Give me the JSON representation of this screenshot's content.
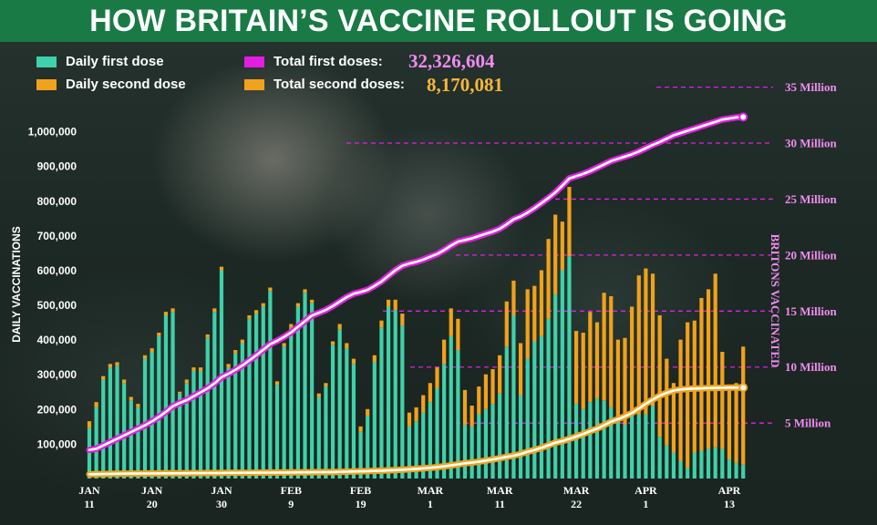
{
  "title": "HOW BRITAIN’S VACCINE ROLLOUT IS GOING",
  "colors": {
    "title_bg": "#1a7a46",
    "first_dose_bar": "#3fd1a9",
    "second_dose_bar": "#f0a21a",
    "total_first_line": "#e21ee2",
    "total_second_line": "#f0a21a",
    "ref_line": "#e21ee2",
    "ref_label": "#f08cf0"
  },
  "legend": {
    "daily_first": "Daily first dose",
    "daily_second": "Daily second dose",
    "total_first_label": "Total first doses:",
    "total_first_value": "32,326,604",
    "total_second_label": "Total second doses:",
    "total_second_value": "8,170,081"
  },
  "chart_data": {
    "type": "bar+line",
    "title": "HOW BRITAIN’S VACCINE ROLLOUT IS GOING",
    "ylabel": "DAILY VACCINATIONS",
    "y2label": "BRITONS VACCINATED",
    "ylim": [
      0,
      1100000
    ],
    "y2lim": [
      0,
      36500000
    ],
    "yticks": [
      "100,000",
      "200,000",
      "300,000",
      "400,000",
      "500,000",
      "600,000",
      "700,000",
      "800,000",
      "900,000",
      "1,000,000"
    ],
    "ytick_values": [
      100000,
      200000,
      300000,
      400000,
      500000,
      600000,
      700000,
      800000,
      900000,
      1000000
    ],
    "reference_lines": [
      {
        "value": 5000000,
        "label": "5 Million"
      },
      {
        "value": 10000000,
        "label": "10 Million"
      },
      {
        "value": 15000000,
        "label": "15 Million"
      },
      {
        "value": 20000000,
        "label": "20 Million"
      },
      {
        "value": 25000000,
        "label": "25 Million"
      },
      {
        "value": 30000000,
        "label": "30 Million"
      },
      {
        "value": 35000000,
        "label": "35 Million"
      }
    ],
    "xticks": [
      {
        "line1": "JAN",
        "line2": "11",
        "day": 0
      },
      {
        "line1": "JAN",
        "line2": "20",
        "day": 9
      },
      {
        "line1": "JAN",
        "line2": "30",
        "day": 19
      },
      {
        "line1": "FEB",
        "line2": "9",
        "day": 29
      },
      {
        "line1": "FEB",
        "line2": "19",
        "day": 39
      },
      {
        "line1": "MAR",
        "line2": "1",
        "day": 49
      },
      {
        "line1": "MAR",
        "line2": "11",
        "day": 59
      },
      {
        "line1": "MAR",
        "line2": "22",
        "day": 70
      },
      {
        "line1": "APR",
        "line2": "1",
        "day": 80
      },
      {
        "line1": "APR",
        "line2": "13",
        "day": 92
      }
    ],
    "legend_position": "top",
    "series": [
      {
        "name": "Daily first dose",
        "type": "bar",
        "values": [
          145000,
          205000,
          285000,
          320000,
          325000,
          275000,
          225000,
          205000,
          345000,
          365000,
          410000,
          470000,
          480000,
          245000,
          275000,
          310000,
          310000,
          405000,
          480000,
          600000,
          320000,
          360000,
          390000,
          460000,
          475000,
          495000,
          540000,
          270000,
          380000,
          435000,
          495000,
          535000,
          505000,
          235000,
          265000,
          385000,
          430000,
          375000,
          330000,
          135000,
          180000,
          335000,
          435000,
          495000,
          485000,
          440000,
          150000,
          165000,
          190000,
          220000,
          260000,
          330000,
          410000,
          370000,
          155000,
          150000,
          185000,
          200000,
          215000,
          245000,
          380000,
          470000,
          240000,
          345000,
          395000,
          410000,
          460000,
          530000,
          600000,
          640000,
          215000,
          200000,
          220000,
          230000,
          225000,
          205000,
          180000,
          155000,
          195000,
          185000,
          185000,
          210000,
          120000,
          95000,
          75000,
          50000,
          30000,
          75000,
          80000,
          85000,
          90000,
          85000,
          55000,
          45000,
          40000
        ]
      },
      {
        "name": "Daily second dose",
        "type": "bar",
        "values": [
          20000,
          15000,
          10000,
          10000,
          10000,
          10000,
          10000,
          10000,
          10000,
          10000,
          10000,
          10000,
          10000,
          5000,
          10000,
          10000,
          10000,
          10000,
          10000,
          10000,
          10000,
          10000,
          10000,
          10000,
          10000,
          10000,
          10000,
          10000,
          10000,
          10000,
          10000,
          10000,
          10000,
          10000,
          10000,
          10000,
          15000,
          15000,
          15000,
          15000,
          20000,
          20000,
          20000,
          20000,
          30000,
          35000,
          40000,
          40000,
          50000,
          55000,
          60000,
          70000,
          80000,
          90000,
          100000,
          60000,
          80000,
          100000,
          100000,
          110000,
          130000,
          100000,
          150000,
          200000,
          160000,
          190000,
          230000,
          230000,
          140000,
          200000,
          210000,
          220000,
          260000,
          220000,
          310000,
          320000,
          220000,
          250000,
          300000,
          400000,
          420000,
          380000,
          350000,
          250000,
          200000,
          350000,
          420000,
          380000,
          440000,
          460000,
          500000,
          280000,
          205000,
          230000,
          340000
        ]
      },
      {
        "name": "Total first doses",
        "type": "line",
        "values": [
          2600000,
          2700000,
          3000000,
          3300000,
          3600000,
          3900000,
          4200000,
          4500000,
          4800000,
          5150000,
          5550000,
          6000000,
          6500000,
          6800000,
          7050000,
          7400000,
          7750000,
          8100000,
          8550000,
          9100000,
          9400000,
          9750000,
          10150000,
          10600000,
          11050000,
          11550000,
          12050000,
          12350000,
          12700000,
          13100000,
          13600000,
          14100000,
          14600000,
          14850000,
          15100000,
          15450000,
          15850000,
          16250000,
          16550000,
          16700000,
          16900000,
          17250000,
          17650000,
          18150000,
          18650000,
          19050000,
          19250000,
          19400000,
          19600000,
          19850000,
          20100000,
          20450000,
          20850000,
          21200000,
          21350000,
          21500000,
          21700000,
          21900000,
          22100000,
          22350000,
          22750000,
          23200000,
          23450000,
          23800000,
          24200000,
          24650000,
          25100000,
          25600000,
          26200000,
          26850000,
          27050000,
          27250000,
          27500000,
          27800000,
          28100000,
          28400000,
          28600000,
          28800000,
          29000000,
          29250000,
          29550000,
          29850000,
          30100000,
          30400000,
          30700000,
          30900000,
          31100000,
          31300000,
          31500000,
          31700000,
          31900000,
          32100000,
          32200000,
          32300000,
          32326604
        ]
      },
      {
        "name": "Total second doses",
        "type": "line",
        "values": [
          430000,
          440000,
          450000,
          460000,
          470000,
          480000,
          490000,
          490000,
          495000,
          500000,
          505000,
          510000,
          515000,
          515000,
          520000,
          525000,
          530000,
          535000,
          540000,
          545000,
          550000,
          555000,
          560000,
          565000,
          570000,
          575000,
          580000,
          585000,
          590000,
          595000,
          600000,
          605000,
          610000,
          615000,
          620000,
          630000,
          645000,
          660000,
          675000,
          690000,
          710000,
          730000,
          750000,
          770000,
          800000,
          830000,
          870000,
          910000,
          960000,
          1010000,
          1070000,
          1140000,
          1220000,
          1310000,
          1410000,
          1470000,
          1550000,
          1650000,
          1750000,
          1860000,
          1990000,
          2090000,
          2240000,
          2440000,
          2600000,
          2790000,
          3020000,
          3250000,
          3390000,
          3590000,
          3800000,
          4020000,
          4280000,
          4500000,
          4810000,
          5130000,
          5350000,
          5600000,
          5900000,
          6300000,
          6720000,
          7100000,
          7450000,
          7700000,
          7900000,
          8000000,
          8050000,
          8080000,
          8100000,
          8120000,
          8140000,
          8150000,
          8160000,
          8165000,
          8170081
        ]
      }
    ]
  }
}
